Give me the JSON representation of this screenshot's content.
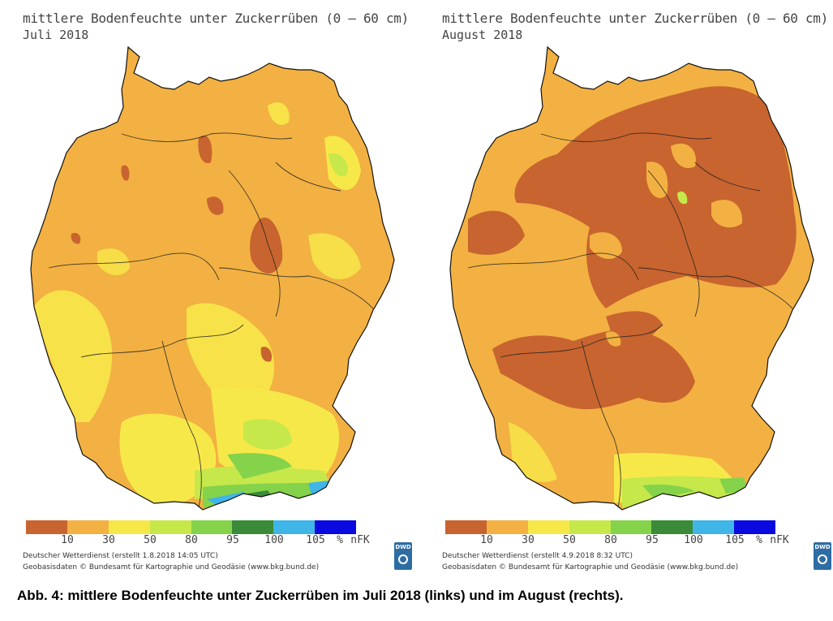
{
  "legend": {
    "colors": [
      "#c8642f",
      "#f2b142",
      "#f7e84a",
      "#c6e84a",
      "#84d34a",
      "#3a8a3a",
      "#3fb5e8",
      "#0a0ae0"
    ],
    "ticks": [
      "10",
      "30",
      "50",
      "80",
      "95",
      "100",
      "105",
      "%",
      "nFK"
    ]
  },
  "panels": [
    {
      "title": "mittlere Bodenfeuchte unter Zuckerrüben (0 – 60 cm)",
      "date": "Juli 2018",
      "credit_line1": "Deutscher Wetterdienst (erstellt 1.8.2018 14:05 UTC)",
      "credit_line2": "Geobasisdaten © Bundesamt für Kartographie und Geodäsie (www.bkg.bund.de)",
      "logo_text": "DWD"
    },
    {
      "title": "mittlere Bodenfeuchte unter Zuckerrüben (0 – 60 cm)",
      "date": "August 2018",
      "credit_line1": "Deutscher Wetterdienst (erstellt 4.9.2018 8:32 UTC)",
      "credit_line2": "Geobasisdaten © Bundesamt für Kartographie und Geodäsie (www.bkg.bund.de)",
      "logo_text": "DWD"
    }
  ],
  "caption": "Abb. 4: mittlere Bodenfeuchte unter Zuckerrüben im Juli 2018 (links) und im August (rechts)."
}
